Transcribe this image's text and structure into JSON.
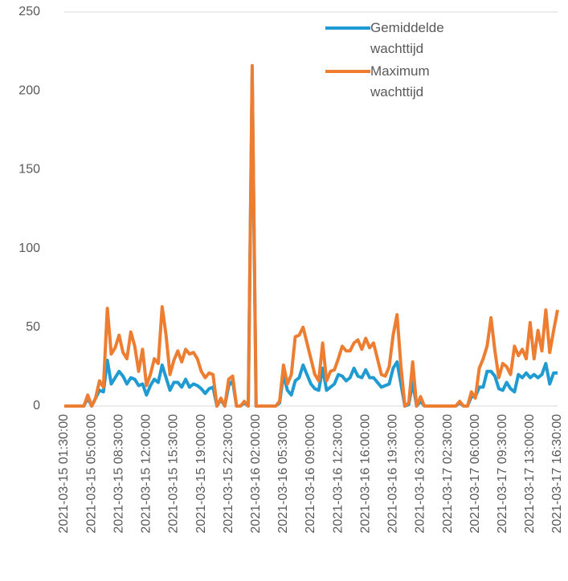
{
  "chart_data": {
    "type": "line",
    "categories": [
      "2021-03-15 01:30:00",
      null,
      null,
      null,
      null,
      null,
      null,
      "2021-03-15 05:00:00",
      null,
      null,
      null,
      null,
      null,
      null,
      "2021-03-15 08:30:00",
      null,
      null,
      null,
      null,
      null,
      null,
      "2021-03-15 12:00:00",
      null,
      null,
      null,
      null,
      null,
      null,
      "2021-03-15 15:30:00",
      null,
      null,
      null,
      null,
      null,
      null,
      "2021-03-15 19:00:00",
      null,
      null,
      null,
      null,
      null,
      null,
      "2021-03-15 22:30:00",
      null,
      null,
      null,
      null,
      null,
      null,
      "2021-03-16 02:00:00",
      null,
      null,
      null,
      null,
      null,
      null,
      "2021-03-16 05:30:00",
      null,
      null,
      null,
      null,
      null,
      null,
      "2021-03-16 09:00:00",
      null,
      null,
      null,
      null,
      null,
      null,
      "2021-03-16 12:30:00",
      null,
      null,
      null,
      null,
      null,
      null,
      "2021-03-16 16:00:00",
      null,
      null,
      null,
      null,
      null,
      null,
      "2021-03-16 19:30:00",
      null,
      null,
      null,
      null,
      null,
      null,
      "2021-03-16 23:00:00",
      null,
      null,
      null,
      null,
      null,
      null,
      "2021-03-17 02:30:00",
      null,
      null,
      null,
      null,
      null,
      null,
      "2021-03-17 06:00:00",
      null,
      null,
      null,
      null,
      null,
      null,
      "2021-03-17 09:30:00",
      null,
      null,
      null,
      null,
      null,
      null,
      "2021-03-17 13:00:00",
      null,
      null,
      null,
      null,
      null,
      null,
      "2021-03-17 16:30:00"
    ],
    "series": [
      {
        "name": "Gemiddelde wachttijd",
        "color": "#1f9bd1",
        "values": [
          0,
          0,
          0,
          0,
          0,
          0,
          5,
          0,
          5,
          10,
          9,
          29,
          14,
          18,
          22,
          19,
          14,
          18,
          17,
          13,
          14,
          7,
          13,
          17,
          15,
          26,
          18,
          10,
          15,
          15,
          12,
          17,
          12,
          14,
          13,
          11,
          8,
          11,
          12,
          0,
          4,
          0,
          13,
          16,
          0,
          0,
          2,
          0,
          210,
          0,
          0,
          0,
          0,
          0,
          0,
          2,
          20,
          10,
          7,
          16,
          18,
          26,
          20,
          14,
          11,
          10,
          24,
          10,
          12,
          14,
          20,
          19,
          16,
          18,
          24,
          19,
          18,
          23,
          18,
          18,
          15,
          12,
          13,
          14,
          24,
          28,
          14,
          0,
          1,
          15,
          0,
          3,
          0,
          0,
          0,
          0,
          0,
          0,
          0,
          0,
          0,
          2,
          0,
          0,
          6,
          6,
          12,
          12,
          22,
          22,
          19,
          11,
          10,
          15,
          11,
          9,
          20,
          18,
          21,
          18,
          20,
          18,
          20,
          27,
          14,
          21,
          21
        ]
      },
      {
        "name": "Maximum wachttijd",
        "color": "#ed7d31",
        "values": [
          0,
          0,
          0,
          0,
          0,
          0,
          7,
          0,
          5,
          16,
          12,
          62,
          33,
          37,
          45,
          34,
          30,
          47,
          38,
          22,
          36,
          13,
          20,
          30,
          27,
          63,
          45,
          20,
          29,
          35,
          28,
          36,
          33,
          34,
          30,
          22,
          18,
          21,
          20,
          0,
          5,
          0,
          17,
          19,
          0,
          0,
          3,
          0,
          216,
          0,
          0,
          0,
          0,
          0,
          0,
          3,
          26,
          14,
          20,
          44,
          45,
          50,
          40,
          30,
          20,
          16,
          40,
          16,
          22,
          23,
          30,
          38,
          35,
          35,
          40,
          42,
          36,
          43,
          37,
          40,
          30,
          20,
          19,
          25,
          45,
          58,
          25,
          0,
          2,
          28,
          0,
          6,
          0,
          0,
          0,
          0,
          0,
          0,
          0,
          0,
          0,
          3,
          0,
          0,
          9,
          5,
          24,
          30,
          38,
          56,
          35,
          18,
          27,
          25,
          20,
          38,
          32,
          36,
          30,
          53,
          30,
          48,
          35,
          61,
          34,
          48,
          61
        ]
      }
    ],
    "ylim": [
      0,
      250
    ],
    "yticks": [
      0,
      50,
      100,
      150,
      200,
      250
    ],
    "legend": "top-right"
  }
}
